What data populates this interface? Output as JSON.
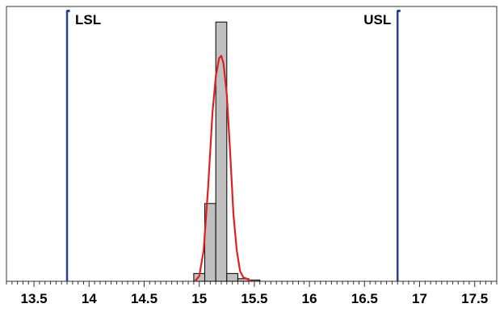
{
  "chart_data": {
    "type": "histogram",
    "title": "",
    "xlabel": "",
    "ylabel": "",
    "xlim": [
      13.25,
      17.7
    ],
    "ylim": [
      0,
      1.06
    ],
    "grid": false,
    "x_ticks": [
      "13.5",
      "14",
      "14.5",
      "15",
      "15.5",
      "16",
      "16.5",
      "17",
      "17.5"
    ],
    "x_tick_values": [
      13.5,
      14,
      14.5,
      15,
      15.5,
      16,
      16.5,
      17,
      17.5
    ],
    "minor_tick_step": 0.05,
    "bin_width": 0.1,
    "bins": [
      {
        "start": 14.95,
        "end": 15.05,
        "height": 0.03
      },
      {
        "start": 15.05,
        "end": 15.15,
        "height": 0.3
      },
      {
        "start": 15.15,
        "end": 15.25,
        "height": 1.0
      },
      {
        "start": 15.25,
        "end": 15.35,
        "height": 0.03
      },
      {
        "start": 15.35,
        "end": 15.45,
        "height": 0.01
      },
      {
        "start": 15.45,
        "end": 15.55,
        "height": 0.005
      }
    ],
    "density_curve": {
      "color": "#e02020",
      "x": [
        14.96,
        15.0,
        15.04,
        15.08,
        15.12,
        15.15,
        15.18,
        15.2,
        15.22,
        15.25,
        15.28,
        15.31,
        15.34,
        15.37,
        15.4,
        15.43,
        15.47
      ],
      "y": [
        0.0,
        0.02,
        0.12,
        0.36,
        0.65,
        0.79,
        0.86,
        0.87,
        0.84,
        0.72,
        0.5,
        0.26,
        0.12,
        0.04,
        0.015,
        0.01,
        0.0
      ]
    },
    "spec_limits": [
      {
        "label": "LSL",
        "value": 13.8,
        "label_side": "right"
      },
      {
        "label": "USL",
        "value": 16.8,
        "label_side": "left"
      }
    ],
    "colors": {
      "bar_fill": "#c0c0c0",
      "bar_stroke": "#000000",
      "spec_line": "#2b3e8f",
      "frame": "#333333"
    }
  }
}
